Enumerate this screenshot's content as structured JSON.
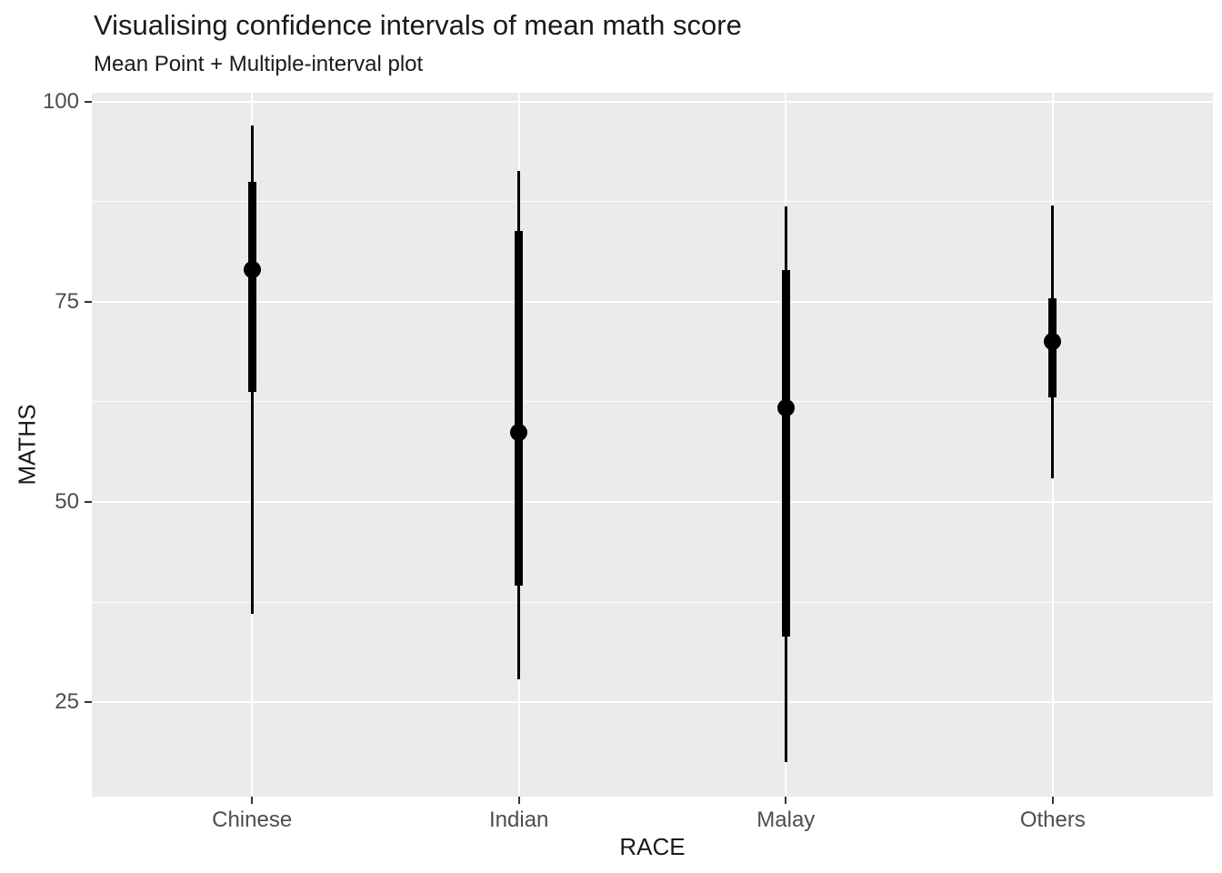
{
  "title": "Visualising confidence intervals of mean math score",
  "subtitle": "Mean Point + Multiple-interval plot",
  "chart_data": {
    "type": "pointinterval",
    "title": "Visualising confidence intervals of mean math score",
    "subtitle": "Mean Point + Multiple-interval plot",
    "xlabel": "RACE",
    "ylabel": "MATHS",
    "categories": [
      "Chinese",
      "Indian",
      "Malay",
      "Others"
    ],
    "series": [
      {
        "category": "Chinese",
        "mean": 79.0,
        "inner_interval": [
          63.7,
          90.0
        ],
        "outer_interval": [
          36.0,
          97.0
        ]
      },
      {
        "category": "Indian",
        "mean": 58.7,
        "inner_interval": [
          39.5,
          83.8
        ],
        "outer_interval": [
          27.8,
          91.3
        ]
      },
      {
        "category": "Malay",
        "mean": 61.8,
        "inner_interval": [
          33.2,
          78.9
        ],
        "outer_interval": [
          17.5,
          86.9
        ]
      },
      {
        "category": "Others",
        "mean": 70.0,
        "inner_interval": [
          63.1,
          75.4
        ],
        "outer_interval": [
          53.0,
          87.0
        ]
      }
    ],
    "y_ticks": [
      25,
      50,
      75,
      100
    ],
    "y_minor_gridlines": [
      37.5,
      62.5,
      87.5
    ],
    "ylim": [
      13.2,
      101.1
    ],
    "grid": true,
    "legend": "none",
    "theme": "ggplot-gray"
  },
  "colors": {
    "background": "#FFFFFF",
    "panel_background": "#EBEBEB",
    "gridline_major": "#FFFFFF",
    "gridline_minor": "#FFFFFF",
    "data": "#000000",
    "tick_mark": "#333333",
    "tick_label": "#4D4D4D",
    "text": "#1A1A1A"
  }
}
